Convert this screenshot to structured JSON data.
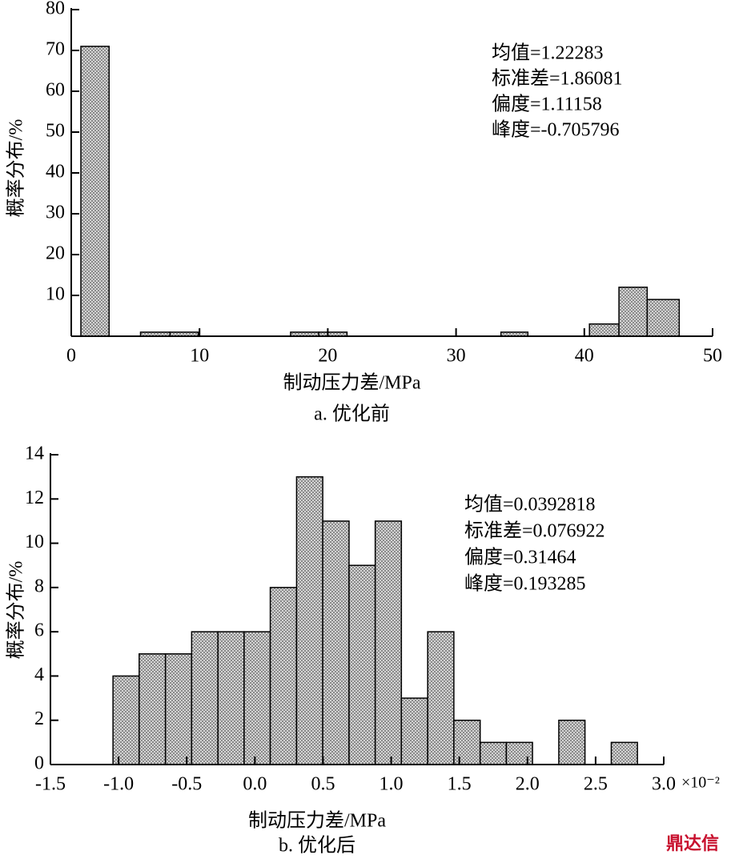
{
  "chart_data": [
    {
      "type": "histogram",
      "caption": "a. 优化前",
      "xlabel": "制动压力差/MPa",
      "ylabel": "概率分布/%",
      "bins": [
        0.75,
        2.95,
        5.4,
        7.7,
        9.9,
        17.1,
        19.3,
        21.5,
        33.5,
        35.6,
        40.4,
        42.7,
        44.9,
        47.4
      ],
      "values": [
        71,
        0,
        1,
        1,
        0,
        1,
        1,
        0,
        1,
        0,
        3,
        12,
        9
      ],
      "xlim": [
        0,
        50
      ],
      "xticks": [
        0,
        10,
        20,
        30,
        40,
        50
      ],
      "ylim": [
        0,
        80
      ],
      "yticks": [
        10,
        20,
        30,
        40,
        50,
        60,
        70,
        80
      ],
      "annotations": [
        "均值=1.22283",
        "标准差=1.86081",
        "偏度=1.11158",
        "峰度=-0.705796"
      ]
    },
    {
      "type": "histogram",
      "caption": "b. 优化后",
      "xlabel": "制动压力差/MPa",
      "ylabel": "概率分布/%",
      "x_multiplier": "×10⁻²",
      "bins": [
        -1.041,
        -0.849,
        -0.656,
        -0.464,
        -0.271,
        -0.079,
        0.113,
        0.306,
        0.498,
        0.691,
        0.883,
        1.075,
        1.268,
        1.46,
        1.653,
        1.845,
        2.037,
        2.23,
        2.422,
        2.615,
        2.807
      ],
      "values": [
        4,
        5,
        5,
        6,
        6,
        6,
        8,
        13,
        11,
        9,
        11,
        3,
        6,
        2,
        1,
        1,
        0,
        2,
        0,
        1
      ],
      "xlim": [
        -1.5,
        3.0
      ],
      "xticks": [
        -1.5,
        {
          "value": -1.0,
          "label": "-1.0"
        },
        -0.5,
        {
          "value": 0,
          "label": "0.0"
        },
        0.5,
        {
          "value": 1.0,
          "label": "1.0"
        },
        1.5,
        {
          "value": 2.0,
          "label": "2.0"
        },
        2.5,
        {
          "value": 3.0,
          "label": "3.0"
        }
      ],
      "ylim": [
        0,
        14
      ],
      "yticks": [
        0,
        2,
        4,
        6,
        8,
        10,
        12,
        14
      ],
      "annotations": [
        "均值=0.0392818",
        "标准差=0.076922",
        "偏度=0.31464",
        "峰度=0.193285"
      ]
    }
  ],
  "watermark": "鼎达信"
}
